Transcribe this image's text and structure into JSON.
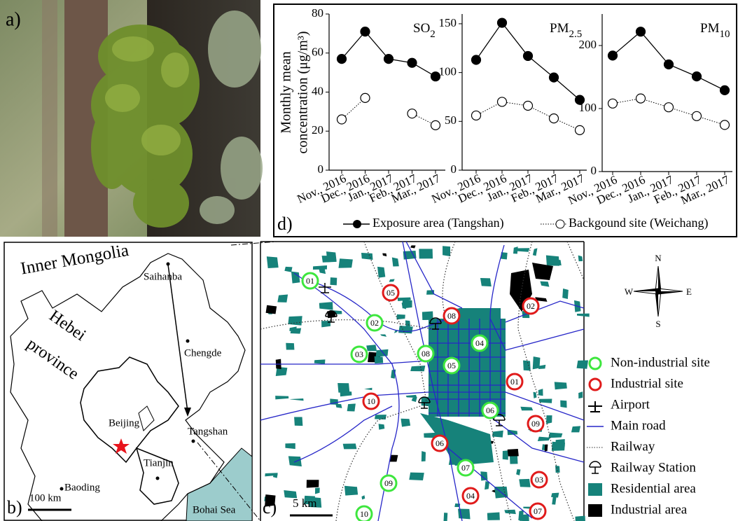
{
  "panel_a": {
    "label": "a)"
  },
  "panel_d": {
    "label": "d)",
    "ylabel_lines": [
      "Monthly mean",
      "concentration (μg/m³)"
    ]
  },
  "chart_data": [
    {
      "type": "line",
      "title": [
        "SO",
        "2"
      ],
      "categories": [
        "Nov., 2016",
        "Dec., 2016",
        "Jan., 2017",
        "Feb., 2017",
        "Mar., 2017"
      ],
      "series": [
        {
          "name": "Exposure area (Tangshan)",
          "color": "#000000",
          "values": [
            57,
            71,
            57,
            55,
            48
          ]
        },
        {
          "name": "Backgound site (Weichang)",
          "color": "#ffffff",
          "values": [
            26,
            37,
            null,
            29,
            23
          ]
        }
      ],
      "ylim": [
        0,
        80
      ],
      "yticks": [
        0,
        20,
        40,
        60,
        80
      ]
    },
    {
      "type": "line",
      "title": [
        "PM",
        "2.5"
      ],
      "categories": [
        "Nov., 2016",
        "Dec., 2016",
        "Jan., 2017",
        "Feb., 2017",
        "Mar., 2017"
      ],
      "series": [
        {
          "color": "#000000",
          "values": [
            113,
            151,
            117,
            95,
            72
          ]
        },
        {
          "color": "#ffffff",
          "values": [
            56,
            70,
            66,
            53,
            41
          ]
        }
      ],
      "ylim": [
        0,
        160
      ],
      "yticks": [
        0,
        50,
        100,
        150
      ]
    },
    {
      "type": "line",
      "title": [
        "PM",
        "10"
      ],
      "categories": [
        "Nov., 2016",
        "Dec., 2016",
        "Jan., 2017",
        "Feb., 2017",
        "Mar., 2017"
      ],
      "series": [
        {
          "color": "#000000",
          "values": [
            184,
            222,
            170,
            151,
            129
          ]
        },
        {
          "color": "#ffffff",
          "values": [
            108,
            116,
            102,
            88,
            74
          ]
        }
      ],
      "ylim": [
        0,
        250
      ],
      "yticks": [
        0,
        100,
        200
      ]
    }
  ],
  "panel_b": {
    "label": "b)",
    "inner_mongolia": "Inner Mongolia",
    "hebei": "Hebei",
    "province": "province",
    "saihanba": "Saihanba",
    "chengde": "Chengde",
    "beijing": "Beijing",
    "tangshan": "Tangshan",
    "tianjin": "Tianjin",
    "baoding": "Baoding",
    "bohai_sea": "Bohai Sea",
    "scale": "100 km"
  },
  "panel_c": {
    "label": "c)",
    "scale": "5 km",
    "compass": {
      "n": "N",
      "s": "S",
      "e": "E",
      "w": "W"
    },
    "non_industrial_sites": [
      "01",
      "02",
      "03",
      "04",
      "05",
      "06",
      "07",
      "08",
      "09",
      "10"
    ],
    "industrial_sites": [
      "01",
      "02",
      "03",
      "04",
      "05",
      "06",
      "07",
      "08",
      "09",
      "10"
    ],
    "legend": [
      "Non-industrial site",
      "Industrial site",
      "Airport",
      "Main road",
      "Railway",
      "Railway Station",
      "Residential area",
      "Industrial area"
    ]
  }
}
